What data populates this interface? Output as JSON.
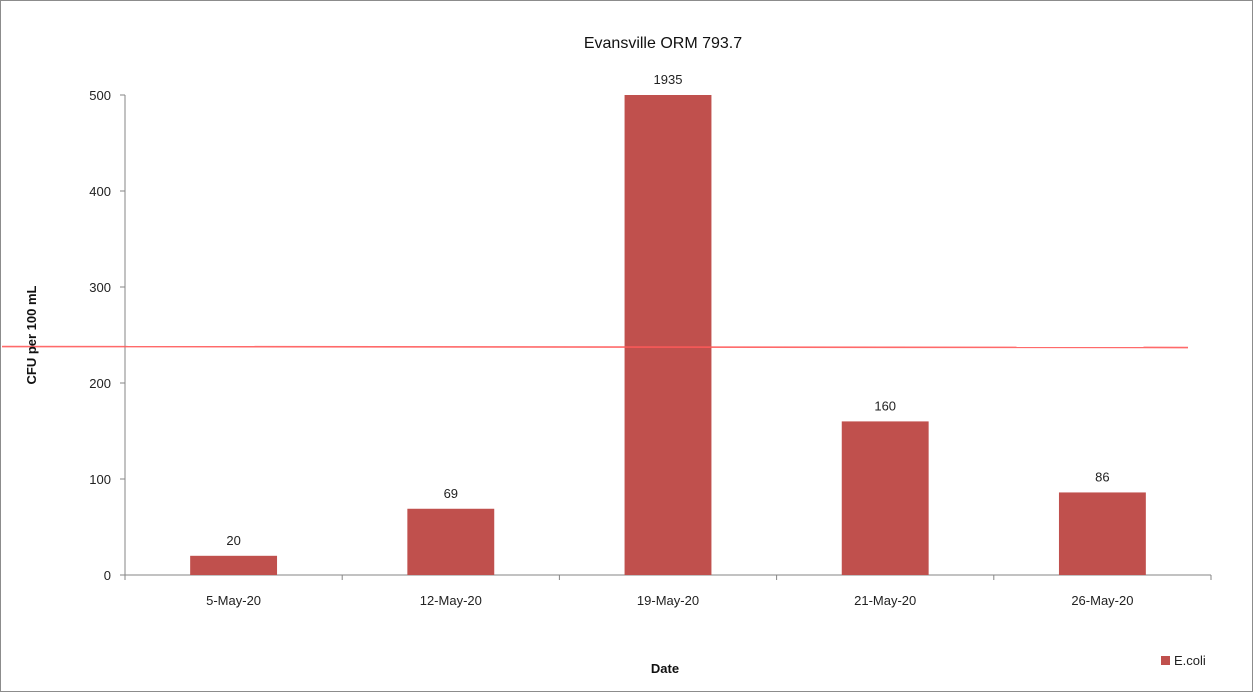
{
  "chart_data": {
    "type": "bar",
    "title": "Evansville ORM 793.7",
    "xlabel": "Date",
    "ylabel": "CFU per 100 mL",
    "categories": [
      "5-May-20",
      "12-May-20",
      "19-May-20",
      "21-May-20",
      "26-May-20"
    ],
    "series": [
      {
        "name": "E.coli",
        "values": [
          20,
          69,
          1935,
          160,
          86
        ],
        "data_labels": [
          "20",
          "69",
          "1935",
          "160",
          "86"
        ],
        "color": "#c0504d"
      }
    ],
    "ylim": [
      0,
      500
    ],
    "y_ticks": [
      0,
      100,
      200,
      300,
      400,
      500
    ],
    "threshold_line": {
      "value": 238,
      "color": "#ff5a5a"
    },
    "grid": false,
    "legend_position": "bottom-right"
  }
}
